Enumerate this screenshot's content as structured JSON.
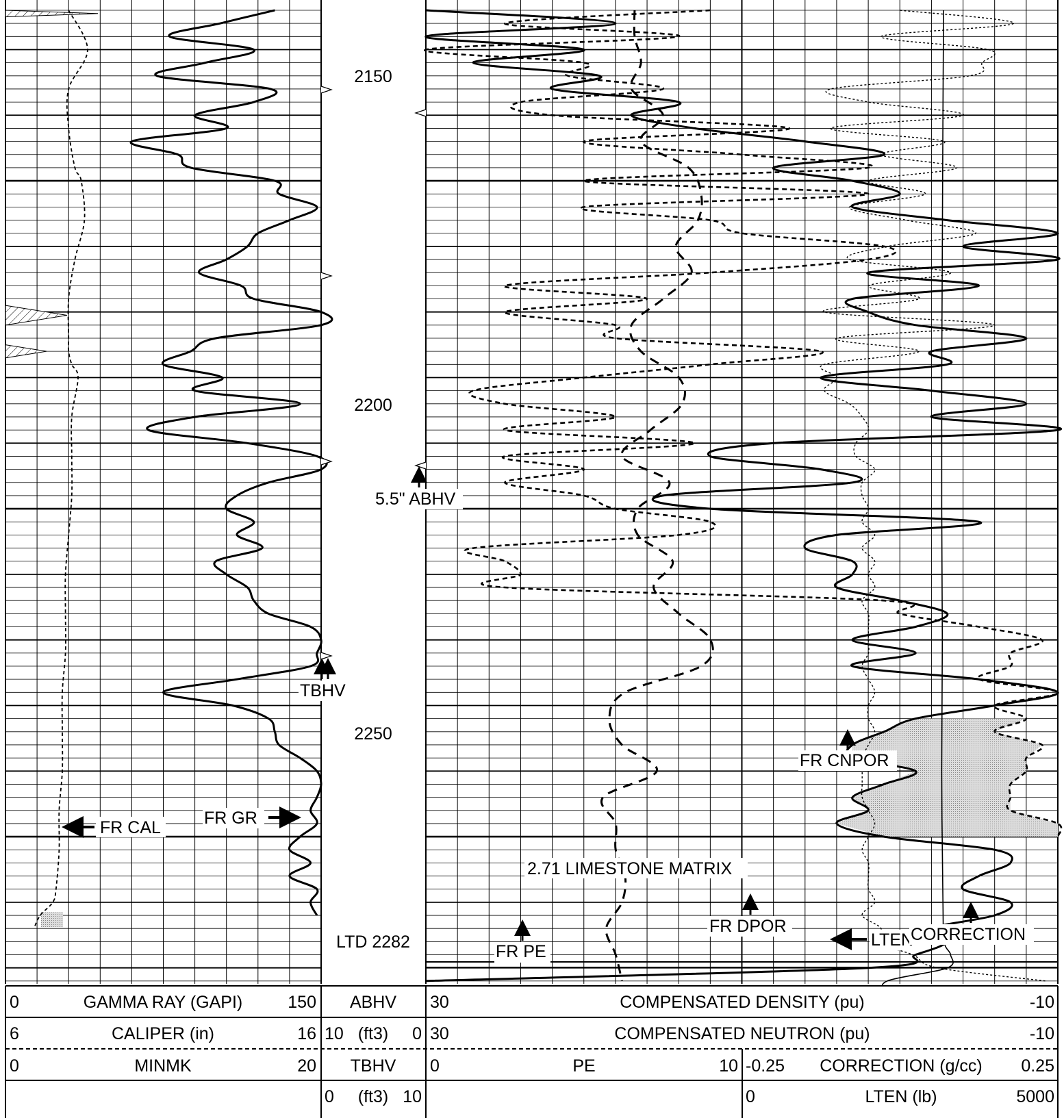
{
  "chart_data": {
    "type": "line",
    "title": "",
    "depth_axis": {
      "range": [
        2124,
        2274
      ],
      "major_tick_labels": [
        "2150",
        "2200",
        "2250"
      ],
      "grid": true
    },
    "total_depth_label": "LTD 2282",
    "depth_markers": [
      {
        "label": "TBHV",
        "depth": 2240
      },
      {
        "label": "5.5\" ABHV",
        "depth": 2209
      }
    ],
    "annotations": [
      "FR CAL",
      "FR GR",
      "FR PE",
      "2.71 LIMESTONE MATRIX",
      "FR DPOR",
      "FR CNPOR",
      "LTEN",
      "CORRECTION"
    ],
    "headers": {
      "gamma_ray": {
        "left": "0",
        "label": "GAMMA RAY (GAPI)",
        "right": "150"
      },
      "caliper": {
        "left": "6",
        "label": "CALIPER (in)",
        "right": "16"
      },
      "minmk": {
        "left": "0",
        "label": "MINMK",
        "right": "20"
      },
      "abhv": {
        "label": "ABHV",
        "left": "10",
        "unit": "(ft3)",
        "right": "0"
      },
      "tbhv": {
        "label": "TBHV",
        "left": "0",
        "unit": "(ft3)",
        "right": "10"
      },
      "density": {
        "left": "30",
        "label": "COMPENSATED DENSITY (pu)",
        "right": "-10"
      },
      "neutron": {
        "left": "30",
        "label": "COMPENSATED NEUTRON (pu)",
        "right": "-10"
      },
      "pe": {
        "left": "0",
        "label": "PE",
        "right": "10"
      },
      "correction": {
        "left": "-0.25",
        "label": "CORRECTION (g/cc)",
        "right": "0.25"
      },
      "lten": {
        "left": "0",
        "label": "LTEN (lb)",
        "right": "5000"
      }
    },
    "series": [
      {
        "name": "GAMMA RAY (GAPI)",
        "style": "solid-thick",
        "x_range": [
          0,
          150
        ],
        "depths": [
          2124,
          2126,
          2128,
          2130,
          2132,
          2134,
          2136,
          2138,
          2140,
          2142,
          2144,
          2146,
          2148,
          2150,
          2152,
          2154,
          2156,
          2158,
          2160,
          2162,
          2164,
          2166,
          2168,
          2170,
          2172,
          2174,
          2176,
          2178,
          2180,
          2182,
          2184,
          2186,
          2188,
          2190,
          2192,
          2194,
          2196,
          2198,
          2200,
          2202,
          2204,
          2206,
          2208,
          2210,
          2212,
          2214,
          2216,
          2218,
          2220,
          2222,
          2224,
          2226,
          2228,
          2230,
          2232,
          2234,
          2236,
          2238,
          2240,
          2242,
          2244,
          2246,
          2248,
          2250,
          2252,
          2254,
          2256,
          2258,
          2260,
          2262
        ],
        "values": [
          128,
          102,
          78,
          118,
          95,
          72,
          126,
          118,
          90,
          105,
          60,
          82,
          88,
          128,
          130,
          148,
          135,
          120,
          115,
          105,
          92,
          112,
          118,
          150,
          150,
          100,
          88,
          75,
          103,
          90,
          140,
          90,
          68,
          115,
          148,
          150,
          125,
          110,
          105,
          118,
          110,
          122,
          100,
          105,
          115,
          118,
          125,
          145,
          150,
          148,
          145,
          110,
          75,
          108,
          125,
          128,
          130,
          140,
          148,
          150,
          148,
          145,
          148,
          140,
          135,
          145,
          135,
          148,
          145,
          148
        ]
      },
      {
        "name": "CALIPER (in)",
        "style": "dashed",
        "x_range": [
          6,
          16
        ],
        "depths": [
          2124,
          2130,
          2136,
          2142,
          2148,
          2150,
          2156,
          2162,
          2168,
          2174,
          2176,
          2178,
          2180,
          2186,
          2192,
          2198,
          2204,
          2210,
          2216,
          2222,
          2228,
          2234,
          2240,
          2246,
          2252,
          2258,
          2260,
          2262,
          2264
        ],
        "values": [
          8.0,
          8.6,
          8.0,
          8.0,
          8.2,
          8.4,
          8.5,
          8.2,
          8.0,
          8.0,
          8.0,
          8.1,
          8.3,
          8.1,
          8.1,
          8.1,
          8.0,
          7.9,
          7.9,
          7.9,
          7.8,
          7.8,
          7.8,
          7.7,
          7.7,
          7.6,
          7.5,
          7.1,
          6.9
        ]
      },
      {
        "name": "COMPENSATED DENSITY (pu)",
        "style": "solid-thick",
        "x_range": [
          30,
          -10
        ],
        "depths": [
          2124,
          2126,
          2128,
          2130,
          2132,
          2134,
          2136,
          2138,
          2140,
          2142,
          2144,
          2146,
          2148,
          2150,
          2152,
          2154,
          2156,
          2158,
          2160,
          2162,
          2164,
          2166,
          2168,
          2170,
          2172,
          2174,
          2176,
          2178,
          2180,
          2182,
          2184,
          2186,
          2188,
          2190,
          2192,
          2194,
          2196,
          2198,
          2200,
          2202,
          2204,
          2206,
          2208,
          2210,
          2212,
          2214,
          2216,
          2218,
          2220,
          2222,
          2224,
          2226,
          2228,
          2230,
          2232,
          2234,
          2236,
          2238,
          2240,
          2242,
          2244,
          2246,
          2248,
          2250,
          2252,
          2254,
          2256,
          2258,
          2260,
          2262,
          2264,
          2266,
          2268,
          2270,
          2272
        ],
        "values": [
          30,
          18,
          30,
          20,
          27,
          19,
          22,
          14,
          17,
          13,
          6,
          1,
          8,
          3,
          0,
          3,
          -3,
          -10,
          -4,
          -10,
          2,
          -5,
          3,
          2,
          -1,
          -8,
          -2,
          -3,
          5,
          -2,
          -8,
          -2,
          -10,
          8,
          12,
          5,
          3,
          15,
          12,
          -5,
          4,
          6,
          3,
          3,
          4,
          0,
          -3,
          -1,
          3,
          -1,
          3,
          -5,
          -12,
          -6,
          -1,
          1,
          3,
          3,
          -1,
          1,
          3,
          2,
          4,
          1,
          -6,
          -7,
          -5,
          -4,
          -7,
          -6,
          -2,
          -3,
          -1,
          2,
          30
        ]
      },
      {
        "name": "COMPENSATED NEUTRON (pu)",
        "style": "dashed-thick",
        "x_range": [
          30,
          -10
        ],
        "depths": [
          2124,
          2126,
          2128,
          2130,
          2132,
          2134,
          2136,
          2138,
          2140,
          2142,
          2144,
          2146,
          2148,
          2150,
          2152,
          2154,
          2156,
          2158,
          2160,
          2162,
          2164,
          2166,
          2168,
          2170,
          2172,
          2174,
          2176,
          2178,
          2180,
          2182,
          2184,
          2186,
          2188,
          2190,
          2192,
          2194,
          2196,
          2198,
          2200,
          2202,
          2204,
          2206,
          2208,
          2210,
          2212,
          2214,
          2216,
          2218,
          2220,
          2222,
          2224,
          2226,
          2228,
          2230,
          2232,
          2234,
          2236,
          2238,
          2240,
          2242,
          2244,
          2246,
          2248,
          2250
        ],
        "values": [
          12,
          25,
          14,
          30,
          20,
          21,
          15,
          24,
          22,
          7,
          20,
          10,
          2,
          20,
          2,
          20,
          12,
          10,
          1,
          2,
          12,
          25,
          16,
          25,
          18,
          18,
          5,
          12,
          20,
          27,
          25,
          18,
          25,
          13,
          25,
          20,
          25,
          20,
          18,
          12,
          14,
          27,
          25,
          24,
          25,
          1,
          0,
          -5,
          -9,
          -7,
          -7,
          -5,
          -10,
          -6,
          -8,
          -6,
          -9,
          -8,
          -8,
          -7,
          -7,
          -7,
          -10,
          -10
        ]
      },
      {
        "name": "PE",
        "style": "dashed-long",
        "x_range": [
          0,
          10
        ],
        "depths": [
          2124,
          2128,
          2132,
          2136,
          2140,
          2144,
          2148,
          2152,
          2156,
          2160,
          2164,
          2168,
          2172,
          2176,
          2180,
          2184,
          2188,
          2192,
          2196,
          2200,
          2204,
          2208,
          2212,
          2216,
          2220,
          2224,
          2228,
          2232,
          2236,
          2240,
          2244,
          2248,
          2252,
          2256,
          2260,
          2264,
          2268,
          2272
        ],
        "values": [
          6.6,
          6.6,
          6.8,
          6.5,
          7.5,
          6.8,
          8.3,
          8.7,
          8.6,
          7.9,
          8.4,
          7.5,
          6.5,
          6.8,
          8.0,
          8.1,
          7.1,
          6.2,
          7.7,
          6.7,
          6.7,
          7.8,
          7.2,
          8.0,
          9.0,
          8.7,
          6.3,
          5.8,
          6.2,
          7.3,
          5.6,
          6.0,
          6.0,
          6.3,
          6.2,
          5.7,
          6.0,
          6.2
        ]
      },
      {
        "name": "CORRECTION (g/cc)",
        "style": "dotted",
        "x_range": [
          -0.25,
          0.25
        ],
        "depths": [
          2124,
          2126,
          2128,
          2130,
          2132,
          2134,
          2136,
          2138,
          2140,
          2142,
          2144,
          2146,
          2148,
          2150,
          2152,
          2154,
          2156,
          2158,
          2160,
          2162,
          2164,
          2166,
          2168,
          2170,
          2172,
          2174,
          2176,
          2178,
          2180,
          2182,
          2184,
          2186,
          2188,
          2190,
          2192,
          2194,
          2196,
          2198,
          2200,
          2202,
          2204,
          2206,
          2208,
          2210,
          2212,
          2214,
          2216,
          2218,
          2220,
          2222,
          2224,
          2226,
          2228,
          2230,
          2232,
          2234,
          2236,
          2238,
          2240,
          2242,
          2244,
          2246,
          2248,
          2250,
          2252,
          2254,
          2256,
          2258,
          2260,
          2262,
          2264,
          2266,
          2268,
          2270,
          2272
        ],
        "values": [
          0.0,
          0.18,
          -0.03,
          0.14,
          0.13,
          0.11,
          -0.11,
          -0.05,
          0.1,
          -0.11,
          0.07,
          -0.03,
          0.09,
          -0.05,
          0.04,
          -0.08,
          0.01,
          0.12,
          -0.02,
          -0.08,
          0.08,
          -0.05,
          0.03,
          -0.12,
          0.15,
          -0.1,
          0.03,
          -0.12,
          -0.1,
          -0.12,
          -0.08,
          -0.06,
          -0.05,
          -0.07,
          -0.07,
          -0.04,
          -0.06,
          -0.06,
          -0.05,
          -0.06,
          -0.04,
          -0.06,
          -0.04,
          -0.05,
          -0.04,
          -0.06,
          -0.05,
          -0.05,
          -0.05,
          -0.05,
          -0.06,
          -0.05,
          -0.04,
          -0.05,
          -0.05,
          -0.04,
          -0.05,
          -0.06,
          -0.06,
          -0.06,
          -0.06,
          -0.05,
          -0.04,
          -0.05,
          -0.06,
          -0.05,
          -0.05,
          -0.05,
          -0.04,
          -0.06,
          -0.03,
          -0.04,
          0.02,
          0.06,
          0.23
        ]
      },
      {
        "name": "LTEN (lb)",
        "style": "solid-thin",
        "x_range": [
          0,
          5000
        ],
        "depths": [
          2124,
          2140,
          2160,
          2180,
          2200,
          2220,
          2240,
          2260,
          2266,
          2268,
          2270,
          2272,
          2274
        ],
        "values": [
          3190,
          3180,
          3170,
          3160,
          3160,
          3170,
          3160,
          3180,
          3200,
          3300,
          3250,
          2300,
          2250
        ]
      }
    ]
  }
}
